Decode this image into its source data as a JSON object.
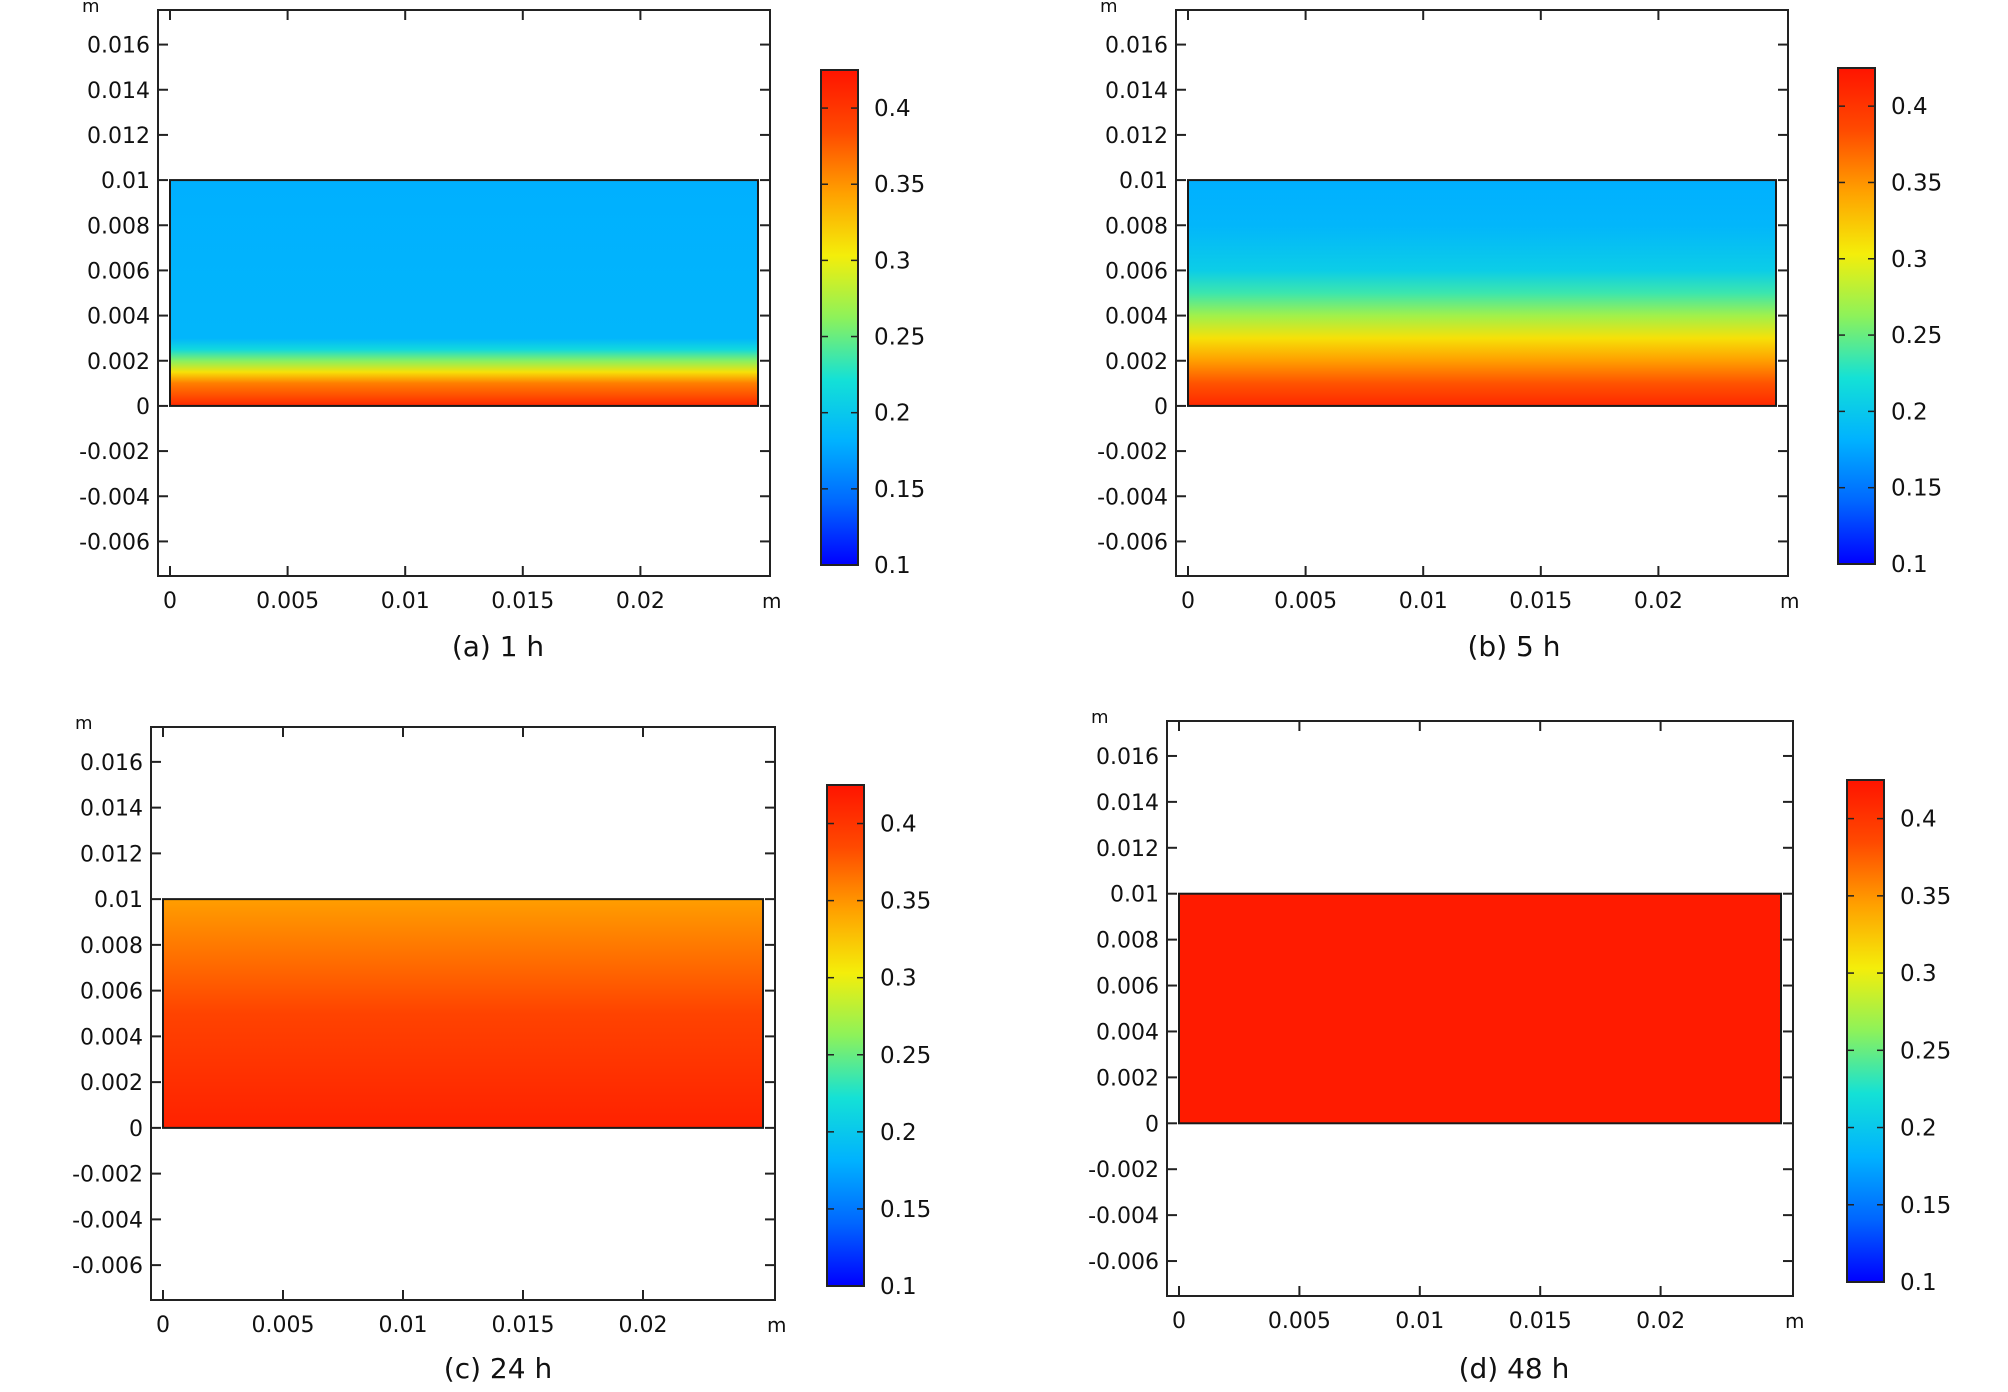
{
  "figure": {
    "panels": [
      {
        "caption": "(a) 1 h"
      },
      {
        "caption": "(b) 5 h"
      },
      {
        "caption": "(c) 24 h"
      },
      {
        "caption": "(d) 48 h"
      }
    ]
  },
  "chart_data": [
    {
      "type": "heatmap",
      "caption": "(a) 1 h",
      "xlabel": "m",
      "ylabel": "m",
      "xlim": [
        0,
        0.025
      ],
      "ylim": [
        -0.007,
        0.017
      ],
      "xticks": [
        0,
        0.005,
        0.01,
        0.015,
        0.02
      ],
      "xtick_labels": [
        "0",
        "0.005",
        "0.01",
        "0.015",
        "0.02"
      ],
      "yticks": [
        0.016,
        0.014,
        0.012,
        0.01,
        0.008,
        0.006,
        0.004,
        0.002,
        0,
        -0.002,
        -0.004,
        -0.006
      ],
      "ytick_labels": [
        "0.016",
        "0.014",
        "0.012",
        "0.01",
        "0.008",
        "0.006",
        "0.004",
        "0.002",
        "0",
        "-0.002",
        "-0.004",
        "-0.006"
      ],
      "domain": {
        "x": [
          0,
          0.025
        ],
        "y": [
          0,
          0.01
        ]
      },
      "colorbar": {
        "range": [
          0.1,
          0.425
        ],
        "ticks": [
          0.4,
          0.35,
          0.3,
          0.25,
          0.2,
          0.15,
          0.1
        ],
        "tick_labels": [
          "0.4",
          "0.35",
          "0.3",
          "0.25",
          "0.2",
          "0.15",
          "0.1"
        ],
        "colors": [
          "#0000ff",
          "#0066ff",
          "#00b2ff",
          "#14e1d6",
          "#8df25a",
          "#f4ee0a",
          "#ffa100",
          "#ff4a00",
          "#ff1400"
        ]
      },
      "profile": {
        "y": [
          0,
          0.001,
          0.0015,
          0.002,
          0.0025,
          0.003,
          0.01
        ],
        "value": [
          0.41,
          0.36,
          0.31,
          0.26,
          0.215,
          0.185,
          0.18
        ]
      }
    },
    {
      "type": "heatmap",
      "caption": "(b) 5 h",
      "xlabel": "m",
      "ylabel": "m",
      "xlim": [
        0,
        0.025
      ],
      "ylim": [
        -0.007,
        0.017
      ],
      "xticks": [
        0,
        0.005,
        0.01,
        0.015,
        0.02
      ],
      "xtick_labels": [
        "0",
        "0.005",
        "0.01",
        "0.015",
        "0.02"
      ],
      "yticks": [
        0.016,
        0.014,
        0.012,
        0.01,
        0.008,
        0.006,
        0.004,
        0.002,
        0,
        -0.002,
        -0.004,
        -0.006
      ],
      "ytick_labels": [
        "0.016",
        "0.014",
        "0.012",
        "0.01",
        "0.008",
        "0.006",
        "0.004",
        "0.002",
        "0",
        "-0.002",
        "-0.004",
        "-0.006"
      ],
      "domain": {
        "x": [
          0,
          0.025
        ],
        "y": [
          0,
          0.01
        ]
      },
      "colorbar": {
        "range": [
          0.1,
          0.425
        ],
        "ticks": [
          0.4,
          0.35,
          0.3,
          0.25,
          0.2,
          0.15,
          0.1
        ],
        "tick_labels": [
          "0.4",
          "0.35",
          "0.3",
          "0.25",
          "0.2",
          "0.15",
          "0.1"
        ],
        "colors": [
          "#0000ff",
          "#0066ff",
          "#00b2ff",
          "#14e1d6",
          "#8df25a",
          "#f4ee0a",
          "#ffa100",
          "#ff4a00",
          "#ff1400"
        ]
      },
      "profile": {
        "y": [
          0,
          0.001,
          0.002,
          0.003,
          0.004,
          0.005,
          0.006,
          0.008,
          0.01
        ],
        "value": [
          0.41,
          0.38,
          0.345,
          0.31,
          0.27,
          0.235,
          0.205,
          0.185,
          0.18
        ]
      }
    },
    {
      "type": "heatmap",
      "caption": "(c) 24 h",
      "xlabel": "m",
      "ylabel": "m",
      "xlim": [
        0,
        0.025
      ],
      "ylim": [
        -0.007,
        0.017
      ],
      "xticks": [
        0,
        0.005,
        0.01,
        0.015,
        0.02
      ],
      "xtick_labels": [
        "0",
        "0.005",
        "0.01",
        "0.015",
        "0.02"
      ],
      "yticks": [
        0.016,
        0.014,
        0.012,
        0.01,
        0.008,
        0.006,
        0.004,
        0.002,
        0,
        -0.002,
        -0.004,
        -0.006
      ],
      "ytick_labels": [
        "0.016",
        "0.014",
        "0.012",
        "0.01",
        "0.008",
        "0.006",
        "0.004",
        "0.002",
        "0",
        "-0.002",
        "-0.004",
        "-0.006"
      ],
      "domain": {
        "x": [
          0,
          0.025
        ],
        "y": [
          0,
          0.01
        ]
      },
      "colorbar": {
        "range": [
          0.1,
          0.425
        ],
        "ticks": [
          0.4,
          0.35,
          0.3,
          0.25,
          0.2,
          0.15,
          0.1
        ],
        "tick_labels": [
          "0.4",
          "0.35",
          "0.3",
          "0.25",
          "0.2",
          "0.15",
          "0.1"
        ],
        "colors": [
          "#0000ff",
          "#0066ff",
          "#00b2ff",
          "#14e1d6",
          "#8df25a",
          "#f4ee0a",
          "#ffa100",
          "#ff4a00",
          "#ff1400"
        ]
      },
      "profile": {
        "y": [
          0,
          0.005,
          0.01
        ],
        "value": [
          0.415,
          0.39,
          0.345
        ]
      }
    },
    {
      "type": "heatmap",
      "caption": "(d) 48 h",
      "xlabel": "m",
      "ylabel": "m",
      "xlim": [
        0,
        0.025
      ],
      "ylim": [
        -0.007,
        0.017
      ],
      "xticks": [
        0,
        0.005,
        0.01,
        0.015,
        0.02
      ],
      "xtick_labels": [
        "0",
        "0.005",
        "0.01",
        "0.015",
        "0.02"
      ],
      "yticks": [
        0.016,
        0.014,
        0.012,
        0.01,
        0.008,
        0.006,
        0.004,
        0.002,
        0,
        -0.002,
        -0.004,
        -0.006
      ],
      "ytick_labels": [
        "0.016",
        "0.014",
        "0.012",
        "0.01",
        "0.008",
        "0.006",
        "0.004",
        "0.002",
        "0",
        "-0.002",
        "-0.004",
        "-0.006"
      ],
      "domain": {
        "x": [
          0,
          0.025
        ],
        "y": [
          0,
          0.01
        ]
      },
      "colorbar": {
        "range": [
          0.1,
          0.425
        ],
        "ticks": [
          0.4,
          0.35,
          0.3,
          0.25,
          0.2,
          0.15,
          0.1
        ],
        "tick_labels": [
          "0.4",
          "0.35",
          "0.3",
          "0.25",
          "0.2",
          "0.15",
          "0.1"
        ],
        "colors": [
          "#0000ff",
          "#0066ff",
          "#00b2ff",
          "#14e1d6",
          "#8df25a",
          "#f4ee0a",
          "#ffa100",
          "#ff4a00",
          "#ff1400"
        ]
      },
      "profile": {
        "y": [
          0,
          0.01
        ],
        "value": [
          0.42,
          0.42
        ]
      }
    }
  ]
}
